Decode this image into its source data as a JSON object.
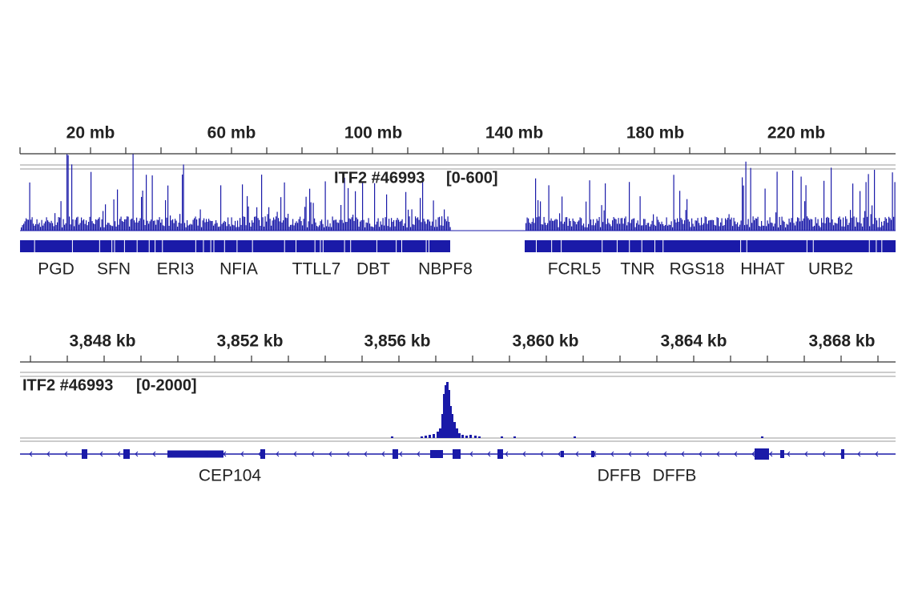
{
  "panels": [
    {
      "ruler": [
        "20 mb",
        "60 mb",
        "100 mb",
        "140 mb",
        "180 mb",
        "220 mb"
      ],
      "track": "ITF2 #46993",
      "range": "[0-600]",
      "genes": [
        "PGD",
        "SFN",
        "ERI3",
        "NFIA",
        "TTLL7",
        "DBT",
        "NBPF8",
        "FCRL5",
        "TNR",
        "RGS18",
        "HHAT",
        "URB2"
      ]
    },
    {
      "ruler": [
        "3,848 kb",
        "3,852 kb",
        "3,856 kb",
        "3,860 kb",
        "3,864 kb",
        "3,868 kb"
      ],
      "track": "ITF2 #46993",
      "range": "[0-2000]",
      "genes": [
        "CEP104",
        "DFFB",
        "DFFB"
      ]
    }
  ]
}
